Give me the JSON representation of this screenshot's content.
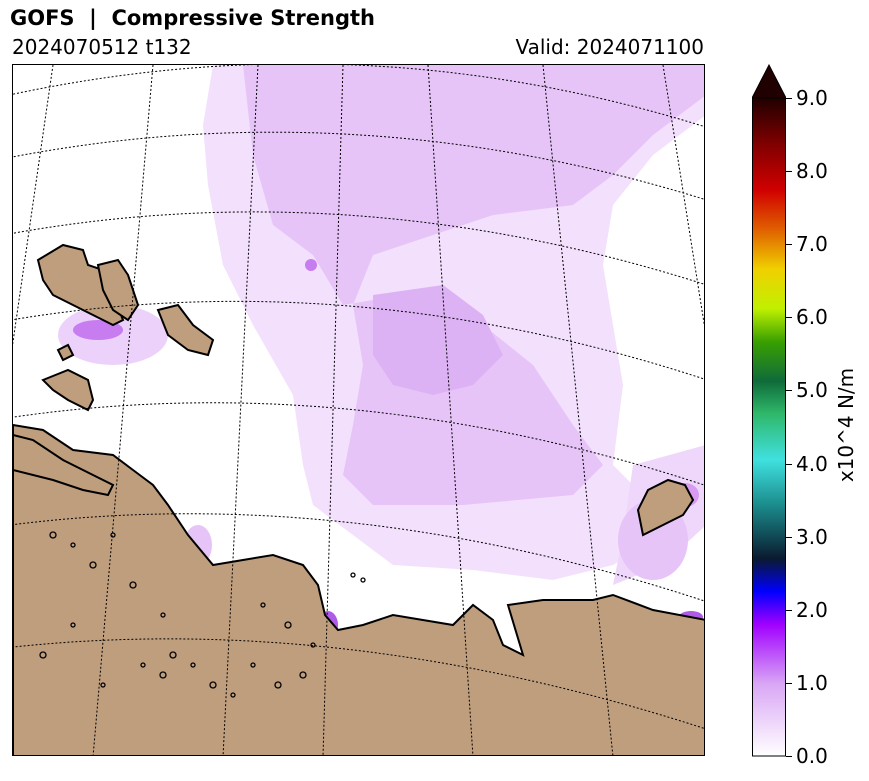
{
  "header": {
    "title": "GOFS  |  Compressive Strength",
    "run": "2024070512 t132",
    "valid": "Valid: 2024071100"
  },
  "colorbar": {
    "label": "x10^4 N/m",
    "ticks": [
      "0.0",
      "1.0",
      "2.0",
      "3.0",
      "4.0",
      "5.0",
      "6.0",
      "7.0",
      "8.0",
      "9.0"
    ],
    "min": 0.0,
    "max": 9.0,
    "extend": "max",
    "colors": [
      "#ffffff",
      "#e8c6f8",
      "#c77df0",
      "#a000ff",
      "#0000ff",
      "#0a1a30",
      "#1a8a8a",
      "#40e0d0",
      "#2fb86a",
      "#0f6b3a",
      "#3aa000",
      "#b0e000",
      "#f0f000",
      "#f0a000",
      "#e05000",
      "#d00000",
      "#800000",
      "#200000"
    ]
  },
  "map": {
    "land_color": "#bf9e7e",
    "ice_color_light": "#f0dcfb",
    "ice_color_medium": "#e2bdf6",
    "ice_color_strong": "#c77df0"
  }
}
